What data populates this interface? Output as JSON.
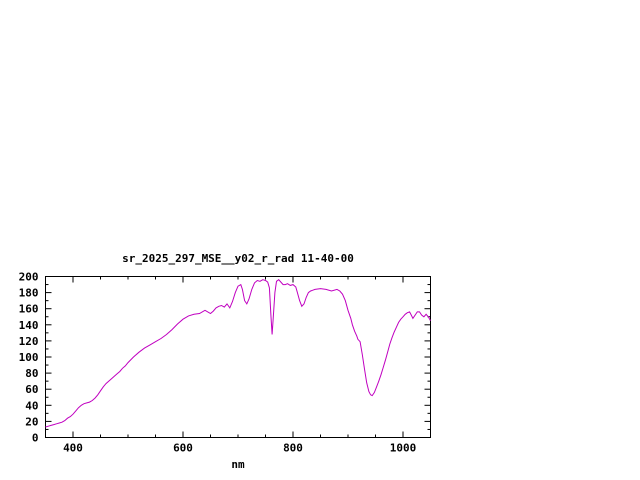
{
  "window": {
    "background": "#ffffff"
  },
  "chart_data": {
    "type": "line",
    "title": "sr_2025_297_MSE__y02_r_rad 11-40-00",
    "xlabel": "nm",
    "ylabel": "",
    "xlim": [
      350,
      1050
    ],
    "ylim": [
      0,
      200
    ],
    "xticks": [
      400,
      600,
      800,
      1000
    ],
    "x_minor_step": 50,
    "yticks": [
      0,
      20,
      40,
      60,
      80,
      100,
      120,
      140,
      160,
      180,
      200
    ],
    "y_minor_step": 10,
    "grid": false,
    "legend": "none",
    "colors": {
      "line": "#c000c0",
      "axis": "#000000",
      "text": "#000000"
    },
    "series": [
      {
        "name": "sr_2025_297_MSE__y02_r_rad 11-40-00",
        "x": [
          350,
          355,
          360,
          365,
          370,
          375,
          380,
          385,
          390,
          395,
          400,
          405,
          410,
          415,
          420,
          425,
          430,
          435,
          440,
          445,
          450,
          455,
          460,
          465,
          470,
          475,
          480,
          485,
          490,
          495,
          500,
          510,
          520,
          530,
          540,
          550,
          560,
          570,
          580,
          590,
          600,
          610,
          620,
          630,
          640,
          650,
          655,
          660,
          665,
          670,
          675,
          680,
          685,
          690,
          695,
          700,
          705,
          708,
          712,
          716,
          720,
          725,
          730,
          735,
          740,
          745,
          750,
          754,
          757,
          760,
          762,
          764,
          767,
          770,
          774,
          778,
          782,
          786,
          790,
          795,
          800,
          805,
          808,
          812,
          816,
          820,
          824,
          828,
          832,
          836,
          840,
          850,
          860,
          870,
          880,
          885,
          890,
          895,
          900,
          905,
          908,
          912,
          916,
          918,
          922,
          926,
          930,
          934,
          938,
          941,
          944,
          948,
          952,
          956,
          960,
          964,
          968,
          972,
          976,
          980,
          984,
          988,
          992,
          996,
          1000,
          1004,
          1008,
          1012,
          1015,
          1018,
          1022,
          1026,
          1030,
          1034,
          1038,
          1042,
          1046,
          1050
        ],
        "y": [
          13,
          14,
          15,
          16,
          17,
          18,
          19,
          21,
          24,
          26,
          29,
          33,
          37,
          40,
          42,
          43,
          44,
          46,
          49,
          53,
          58,
          63,
          67,
          70,
          73,
          76,
          79,
          82,
          86,
          89,
          93,
          100,
          106,
          111,
          115,
          119,
          123,
          128,
          134,
          141,
          147,
          151,
          153,
          154,
          158,
          154,
          157,
          161,
          163,
          164,
          162,
          166,
          161,
          169,
          180,
          188,
          190,
          184,
          170,
          166,
          172,
          184,
          192,
          195,
          194,
          196,
          195,
          193,
          186,
          150,
          128,
          148,
          180,
          194,
          196,
          193,
          190,
          190,
          191,
          189,
          190,
          187,
          180,
          170,
          163,
          166,
          174,
          180,
          182,
          183,
          184,
          185,
          184,
          182,
          184,
          182,
          178,
          170,
          158,
          148,
          140,
          132,
          126,
          122,
          119,
          103,
          85,
          68,
          57,
          53,
          52,
          56,
          63,
          70,
          78,
          87,
          96,
          106,
          116,
          124,
          131,
          137,
          143,
          147,
          150,
          153,
          155,
          156,
          152,
          148,
          152,
          156,
          156,
          152,
          150,
          153,
          150,
          145
        ]
      }
    ]
  }
}
